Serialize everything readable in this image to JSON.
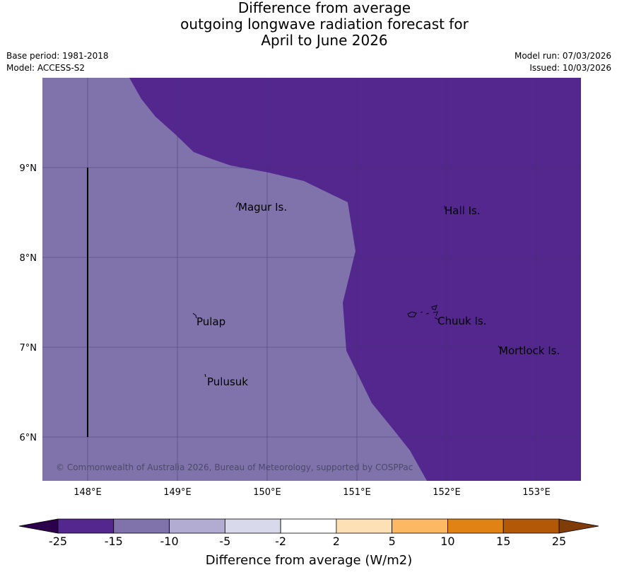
{
  "title": {
    "line1": "Difference from average",
    "line2": "outgoing longwave radiation forecast for",
    "line3": "April to June 2026"
  },
  "meta": {
    "base_period": "Base period: 1981-2018",
    "model": "Model: ACCESS-S2",
    "model_run": "Model run: 07/03/2026",
    "issued": "Issued: 10/03/2026"
  },
  "map": {
    "lat_ticks": [
      "9°N",
      "8°N",
      "7°N",
      "6°N"
    ],
    "lon_ticks": [
      "148°E",
      "149°E",
      "150°E",
      "151°E",
      "152°E",
      "153°E"
    ],
    "places": [
      "Magur Is.",
      "Hall Is.",
      "Pulap",
      "Chuuk Is.",
      "Mortlock Is.",
      "Pulusuk"
    ],
    "copyright": "© Commonwealth of Australia 2026, Bureau of Meteorology, supported by COSPPac",
    "colors": {
      "band_minus25_minus15": "#54278f",
      "band_minus15_minus10": "#8073ac",
      "grid": "#3c3264"
    }
  },
  "colorbar": {
    "label": "Difference from average (W/m2)",
    "ticks": [
      "-25",
      "-15",
      "-10",
      "-5",
      "-2",
      "2",
      "5",
      "10",
      "15",
      "25"
    ],
    "colors": [
      "#54278f",
      "#8073ac",
      "#b2abd2",
      "#d8daeb",
      "#ffffff",
      "#fee0b6",
      "#fdb863",
      "#e08214",
      "#b35806"
    ],
    "low_extend_color": "#2d004b",
    "high_extend_color": "#7f3b08"
  }
}
